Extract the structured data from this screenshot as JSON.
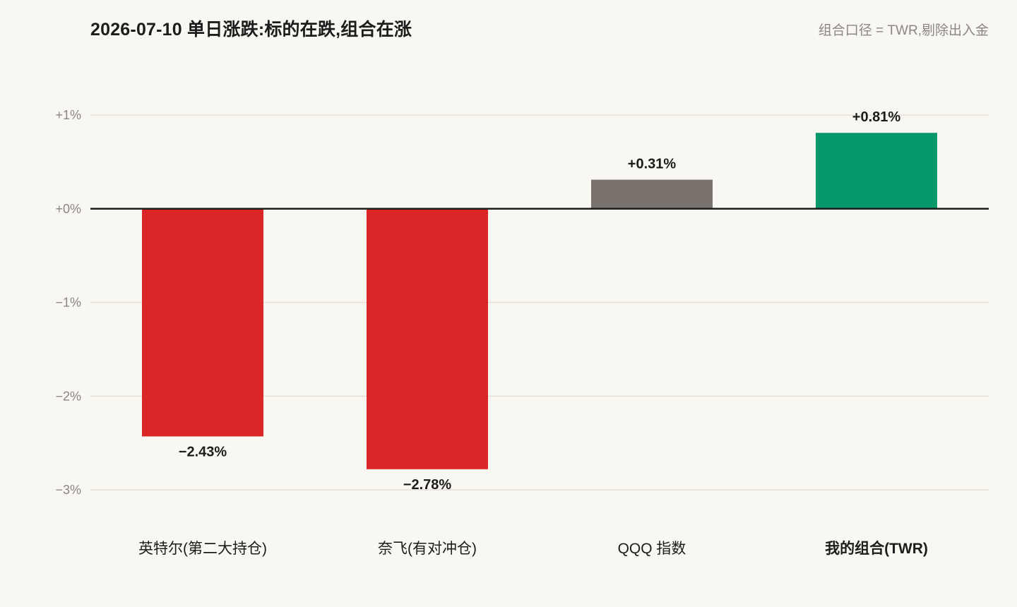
{
  "header": {
    "title": "2026-07-10 单日涨跌:标的在跌,组合在涨",
    "subtitle": "组合口径 = TWR,剔除出入金"
  },
  "colors": {
    "background": "#f9f7f2",
    "negative": "#db2627",
    "index": "#7a726d",
    "portfolio": "#06976a",
    "gridline": "#e6e1d6",
    "zero_line": "#1c1c1c"
  },
  "chart_data": {
    "type": "bar",
    "title": "2026-07-10 单日涨跌:标的在跌,组合在涨",
    "subtitle": "组合口径 = TWR,剔除出入金",
    "categories": [
      "英特尔(第二大持仓)",
      "奈飞(有对冲仓)",
      "QQQ 指数",
      "我的组合(TWR)"
    ],
    "values": [
      -2.43,
      -2.78,
      0.31,
      0.81
    ],
    "value_labels": [
      "−2.43%",
      "−2.78%",
      "+0.31%",
      "+0.81%"
    ],
    "bar_colors": [
      "#db2627",
      "#db2627",
      "#7a726d",
      "#06976a"
    ],
    "bold_category": [
      false,
      false,
      false,
      true
    ],
    "unit": "%",
    "ylim": [
      -3,
      1
    ],
    "yticks": [
      1,
      0,
      -1,
      -2,
      -3
    ],
    "ytick_labels": [
      "+1%",
      "+0%",
      "−1%",
      "−2%",
      "−3%"
    ],
    "grid": true,
    "xlabel": "",
    "ylabel": ""
  }
}
